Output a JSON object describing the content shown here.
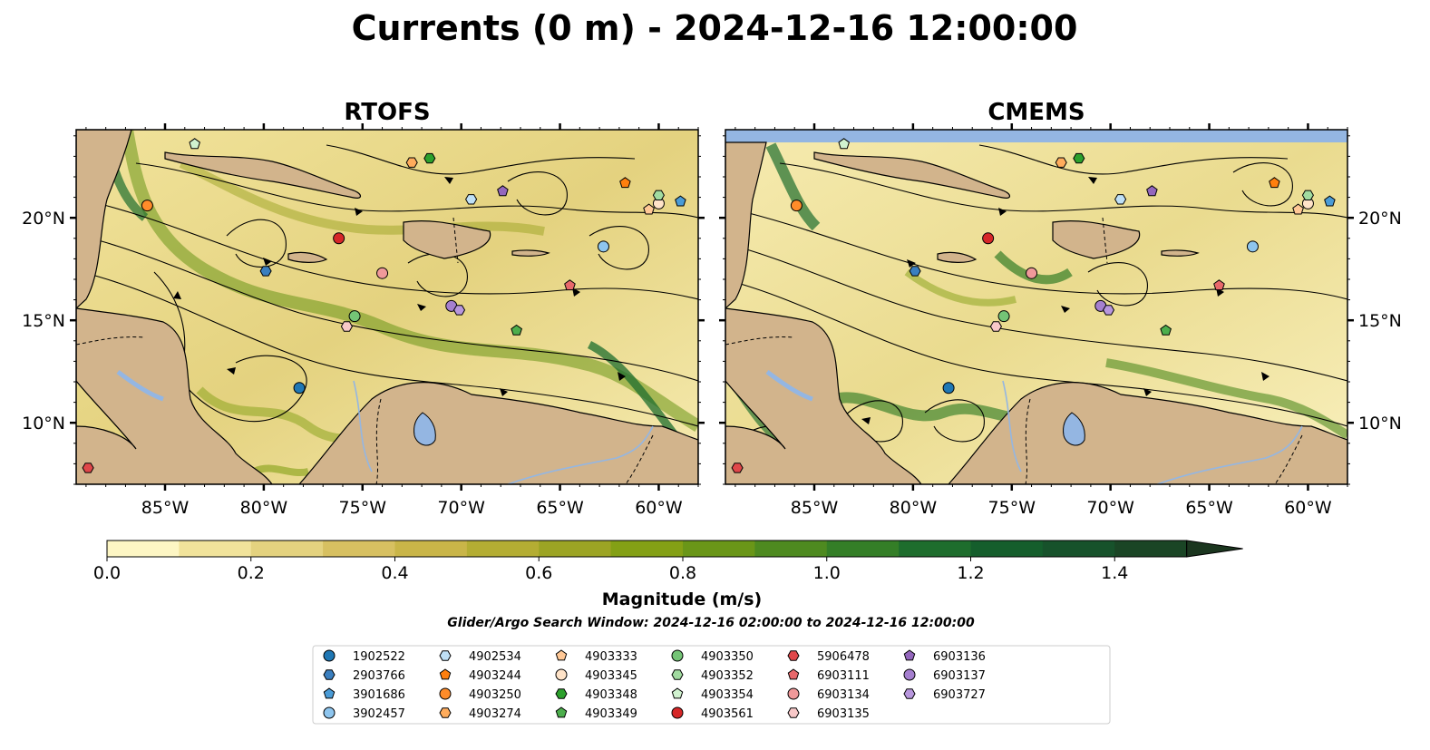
{
  "figure": {
    "title": "Currents (0 m) - 2024-12-16 12:00:00",
    "search_window": "Glider/Argo Search Window: 2024-12-16 02:00:00 to 2024-12-16 12:00:00"
  },
  "chart_data": {
    "type": "map",
    "panels": [
      {
        "title": "RTOFS"
      },
      {
        "title": "CMEMS"
      }
    ],
    "xlim": [
      -89.5,
      -58
    ],
    "ylim": [
      7,
      24.3
    ],
    "x_ticks": [
      -85,
      -80,
      -75,
      -70,
      -65,
      -60
    ],
    "x_tick_labels": [
      "85°W",
      "80°W",
      "75°W",
      "70°W",
      "65°W",
      "60°W"
    ],
    "y_ticks": [
      10,
      15,
      20
    ],
    "y_tick_labels": [
      "10°N",
      "15°N",
      "20°N"
    ],
    "colorbar": {
      "label": "Magnitude (m/s)",
      "min": 0.0,
      "max": 1.6,
      "extend": "max",
      "ticks": [
        0.0,
        0.2,
        0.4,
        0.6,
        0.8,
        1.0,
        1.2,
        1.4
      ],
      "tick_labels": [
        "0.0",
        "0.2",
        "0.4",
        "0.6",
        "0.8",
        "1.0",
        "1.2",
        "1.4"
      ],
      "colors": [
        "#fdf6c4",
        "#f1e39b",
        "#e4d27f",
        "#d7c061",
        "#c9b548",
        "#b4ad33",
        "#9ca424",
        "#84a015",
        "#6a9618",
        "#4e8a20",
        "#347e27",
        "#1e6d2d",
        "#155e2c",
        "#17522b",
        "#1a4525",
        "#1b361f"
      ]
    },
    "land_color": "#d2b48c",
    "water_color": "#94b6e2",
    "glider_argo_positions": [
      {
        "id": "1902522",
        "lon": -78.2,
        "lat": 11.7
      },
      {
        "id": "2903766",
        "lon": -79.9,
        "lat": 17.4
      },
      {
        "id": "3901686",
        "lon": -58.9,
        "lat": 20.8
      },
      {
        "id": "3902457",
        "lon": -62.8,
        "lat": 18.6
      },
      {
        "id": "4902534",
        "lon": -69.5,
        "lat": 20.9
      },
      {
        "id": "4903244",
        "lon": -61.7,
        "lat": 21.7
      },
      {
        "id": "4903250",
        "lon": -85.9,
        "lat": 20.6
      },
      {
        "id": "4903274",
        "lon": -72.5,
        "lat": 22.7
      },
      {
        "id": "4903333",
        "lon": -60.5,
        "lat": 20.4
      },
      {
        "id": "4903345",
        "lon": -60.0,
        "lat": 20.7
      },
      {
        "id": "4903348",
        "lon": -71.6,
        "lat": 22.9
      },
      {
        "id": "4903349",
        "lon": -67.2,
        "lat": 14.5
      },
      {
        "id": "4903350",
        "lon": -75.4,
        "lat": 15.2
      },
      {
        "id": "4903352",
        "lon": -60.0,
        "lat": 21.1
      },
      {
        "id": "4903354",
        "lon": -83.5,
        "lat": 23.6
      },
      {
        "id": "4903561",
        "lon": -76.2,
        "lat": 19.0
      },
      {
        "id": "5906478",
        "lon": -88.9,
        "lat": 7.8
      },
      {
        "id": "6903111",
        "lon": -64.5,
        "lat": 16.7
      },
      {
        "id": "6903134",
        "lon": -74.0,
        "lat": 17.3
      },
      {
        "id": "6903135",
        "lon": -75.8,
        "lat": 14.7
      },
      {
        "id": "6903136",
        "lon": -67.9,
        "lat": 21.3
      },
      {
        "id": "6903137",
        "lon": -70.5,
        "lat": 15.7
      },
      {
        "id": "6903727",
        "lon": -70.1,
        "lat": 15.5
      }
    ]
  },
  "legend": {
    "entries": [
      {
        "label": "1902522",
        "color": "#1f77b4",
        "marker": "circle"
      },
      {
        "label": "2903766",
        "color": "#3a7fbf",
        "marker": "hexagon"
      },
      {
        "label": "3901686",
        "color": "#4a9bd6",
        "marker": "pentagon"
      },
      {
        "label": "3902457",
        "color": "#8ec5ee",
        "marker": "circle"
      },
      {
        "label": "4902534",
        "color": "#bfe0f6",
        "marker": "hexagon"
      },
      {
        "label": "4903244",
        "color": "#ff7f0e",
        "marker": "pentagon"
      },
      {
        "label": "4903250",
        "color": "#ff8c2a",
        "marker": "circle"
      },
      {
        "label": "4903274",
        "color": "#ffac5c",
        "marker": "hexagon"
      },
      {
        "label": "4903333",
        "color": "#ffc896",
        "marker": "pentagon"
      },
      {
        "label": "4903345",
        "color": "#ffe3c8",
        "marker": "circle"
      },
      {
        "label": "4903348",
        "color": "#2ca02c",
        "marker": "hexagon"
      },
      {
        "label": "4903349",
        "color": "#4cae4c",
        "marker": "pentagon"
      },
      {
        "label": "4903350",
        "color": "#74c476",
        "marker": "circle"
      },
      {
        "label": "4903352",
        "color": "#a1dba0",
        "marker": "hexagon"
      },
      {
        "label": "4903354",
        "color": "#d0f2cf",
        "marker": "pentagon"
      },
      {
        "label": "4903561",
        "color": "#d62728",
        "marker": "circle"
      },
      {
        "label": "5906478",
        "color": "#e0474a",
        "marker": "hexagon"
      },
      {
        "label": "6903111",
        "color": "#e8686b",
        "marker": "pentagon"
      },
      {
        "label": "6903134",
        "color": "#f0999a",
        "marker": "circle"
      },
      {
        "label": "6903135",
        "color": "#f8c8c8",
        "marker": "hexagon"
      },
      {
        "label": "6903136",
        "color": "#9467bd",
        "marker": "pentagon"
      },
      {
        "label": "6903137",
        "color": "#a57fcf",
        "marker": "circle"
      },
      {
        "label": "6903727",
        "color": "#b897dd",
        "marker": "hexagon"
      }
    ]
  }
}
